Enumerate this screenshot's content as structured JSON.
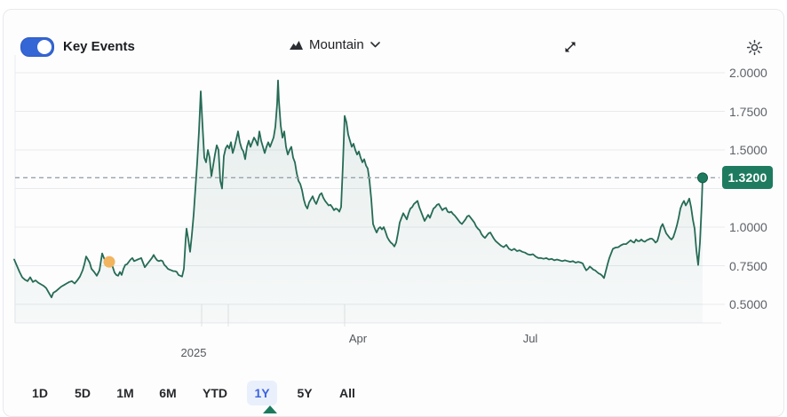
{
  "header": {
    "key_events_label": "Key Events",
    "key_events_enabled": true,
    "chart_type": {
      "label": "Mountain"
    }
  },
  "timeframes": {
    "options": [
      "1D",
      "5D",
      "1M",
      "6M",
      "YTD",
      "1Y",
      "5Y",
      "All"
    ],
    "active": "1Y"
  },
  "colors": {
    "toggle_blue": "#3566d6",
    "toggle_border": "#2d5ac2",
    "line_green": "#266b55",
    "fill_top": "rgba(38,110,86,0.11)",
    "fill_bottom": "rgba(38,110,86,0.03)",
    "badge_green": "#1e7b5f",
    "dot_stroke": "#10573f",
    "event_orange": "#f2b45f",
    "dashed_gray": "#9aa2a9",
    "grid_gray": "#e8eaed",
    "tick_gray": "#dfe2e5",
    "icon_dark": "#2a2e33"
  },
  "chart_data": {
    "type": "area",
    "style_name": "mountain",
    "title": "",
    "xlabel": "",
    "ylabel": "",
    "y_axis": {
      "range": [
        0.5,
        2.0
      ],
      "ticks": [
        {
          "value": 2.0,
          "label": "2.0000"
        },
        {
          "value": 1.75,
          "label": "1.7500"
        },
        {
          "value": 1.5,
          "label": "1.5000"
        },
        {
          "value": 1.25,
          "label": ""
        },
        {
          "value": 1.0,
          "label": "1.0000"
        },
        {
          "value": 0.75,
          "label": "0.7500"
        },
        {
          "value": 0.5,
          "label": "0.5000"
        }
      ]
    },
    "x_axis": {
      "labels": [
        {
          "text": "2025",
          "x": 218,
          "row": 2
        },
        {
          "text": "Apr",
          "x": 403,
          "row": 1
        },
        {
          "text": "Jul",
          "x": 597,
          "row": 1
        }
      ],
      "tick_positions": [
        227,
        257,
        388
      ]
    },
    "last_price": {
      "value": 1.32,
      "label": "1.3200"
    },
    "events": [
      {
        "x": 123,
        "value": 0.775
      }
    ],
    "series": [
      [
        16,
        0.79
      ],
      [
        19,
        0.75
      ],
      [
        22,
        0.71
      ],
      [
        25,
        0.675
      ],
      [
        28,
        0.66
      ],
      [
        31,
        0.65
      ],
      [
        34,
        0.675
      ],
      [
        37,
        0.645
      ],
      [
        40,
        0.655
      ],
      [
        43,
        0.64
      ],
      [
        46,
        0.63
      ],
      [
        49,
        0.62
      ],
      [
        52,
        0.605
      ],
      [
        55,
        0.575
      ],
      [
        58,
        0.545
      ],
      [
        60,
        0.575
      ],
      [
        63,
        0.585
      ],
      [
        66,
        0.6
      ],
      [
        69,
        0.615
      ],
      [
        72,
        0.625
      ],
      [
        75,
        0.635
      ],
      [
        78,
        0.645
      ],
      [
        81,
        0.65
      ],
      [
        84,
        0.635
      ],
      [
        87,
        0.655
      ],
      [
        90,
        0.68
      ],
      [
        93,
        0.72
      ],
      [
        95,
        0.76
      ],
      [
        97,
        0.81
      ],
      [
        99,
        0.79
      ],
      [
        101,
        0.77
      ],
      [
        103,
        0.73
      ],
      [
        106,
        0.71
      ],
      [
        109,
        0.685
      ],
      [
        112,
        0.72
      ],
      [
        115,
        0.83
      ],
      [
        117,
        0.8
      ],
      [
        119,
        0.78
      ],
      [
        121,
        0.79
      ],
      [
        123,
        0.8
      ],
      [
        125,
        0.77
      ],
      [
        127,
        0.74
      ],
      [
        129,
        0.705
      ],
      [
        131,
        0.69
      ],
      [
        133,
        0.685
      ],
      [
        135,
        0.71
      ],
      [
        137,
        0.69
      ],
      [
        139,
        0.73
      ],
      [
        141,
        0.755
      ],
      [
        143,
        0.76
      ],
      [
        145,
        0.775
      ],
      [
        147,
        0.79
      ],
      [
        149,
        0.8
      ],
      [
        151,
        0.78
      ],
      [
        153,
        0.785
      ],
      [
        155,
        0.79
      ],
      [
        157,
        0.795
      ],
      [
        159,
        0.8
      ],
      [
        161,
        0.77
      ],
      [
        163,
        0.74
      ],
      [
        165,
        0.755
      ],
      [
        167,
        0.77
      ],
      [
        169,
        0.785
      ],
      [
        171,
        0.8
      ],
      [
        173,
        0.82
      ],
      [
        175,
        0.8
      ],
      [
        177,
        0.785
      ],
      [
        179,
        0.78
      ],
      [
        181,
        0.785
      ],
      [
        183,
        0.78
      ],
      [
        185,
        0.755
      ],
      [
        187,
        0.745
      ],
      [
        189,
        0.73
      ],
      [
        191,
        0.725
      ],
      [
        193,
        0.72
      ],
      [
        195,
        0.715
      ],
      [
        197,
        0.715
      ],
      [
        199,
        0.71
      ],
      [
        201,
        0.69
      ],
      [
        203,
        0.685
      ],
      [
        205,
        0.68
      ],
      [
        207,
        0.73
      ],
      [
        209,
        0.92
      ],
      [
        210,
        0.99
      ],
      [
        212,
        0.92
      ],
      [
        214,
        0.84
      ],
      [
        216,
        0.95
      ],
      [
        218,
        1.08
      ],
      [
        220,
        1.25
      ],
      [
        222,
        1.42
      ],
      [
        224,
        1.62
      ],
      [
        226,
        1.88
      ],
      [
        228,
        1.66
      ],
      [
        230,
        1.45
      ],
      [
        232,
        1.42
      ],
      [
        234,
        1.5
      ],
      [
        236,
        1.45
      ],
      [
        238,
        1.33
      ],
      [
        240,
        1.4
      ],
      [
        242,
        1.47
      ],
      [
        244,
        1.53
      ],
      [
        246,
        1.5
      ],
      [
        248,
        1.3
      ],
      [
        250,
        1.25
      ],
      [
        252,
        1.46
      ],
      [
        254,
        1.51
      ],
      [
        256,
        1.53
      ],
      [
        258,
        1.51
      ],
      [
        260,
        1.55
      ],
      [
        262,
        1.48
      ],
      [
        264,
        1.52
      ],
      [
        266,
        1.57
      ],
      [
        268,
        1.62
      ],
      [
        270,
        1.55
      ],
      [
        272,
        1.51
      ],
      [
        274,
        1.49
      ],
      [
        276,
        1.44
      ],
      [
        278,
        1.52
      ],
      [
        280,
        1.56
      ],
      [
        282,
        1.52
      ],
      [
        284,
        1.55
      ],
      [
        286,
        1.58
      ],
      [
        288,
        1.56
      ],
      [
        290,
        1.53
      ],
      [
        292,
        1.62
      ],
      [
        294,
        1.56
      ],
      [
        296,
        1.52
      ],
      [
        298,
        1.48
      ],
      [
        300,
        1.52
      ],
      [
        302,
        1.55
      ],
      [
        304,
        1.52
      ],
      [
        306,
        1.55
      ],
      [
        308,
        1.58
      ],
      [
        310,
        1.65
      ],
      [
        312,
        1.8
      ],
      [
        313,
        1.95
      ],
      [
        314,
        1.82
      ],
      [
        316,
        1.66
      ],
      [
        318,
        1.58
      ],
      [
        320,
        1.62
      ],
      [
        322,
        1.52
      ],
      [
        324,
        1.47
      ],
      [
        326,
        1.5
      ],
      [
        328,
        1.52
      ],
      [
        330,
        1.45
      ],
      [
        332,
        1.42
      ],
      [
        334,
        1.35
      ],
      [
        336,
        1.3
      ],
      [
        338,
        1.28
      ],
      [
        340,
        1.24
      ],
      [
        342,
        1.18
      ],
      [
        344,
        1.14
      ],
      [
        346,
        1.12
      ],
      [
        348,
        1.16
      ],
      [
        350,
        1.18
      ],
      [
        352,
        1.2
      ],
      [
        354,
        1.17
      ],
      [
        356,
        1.15
      ],
      [
        358,
        1.18
      ],
      [
        360,
        1.21
      ],
      [
        362,
        1.22
      ],
      [
        364,
        1.19
      ],
      [
        366,
        1.17
      ],
      [
        368,
        1.155
      ],
      [
        370,
        1.14
      ],
      [
        372,
        1.145
      ],
      [
        374,
        1.13
      ],
      [
        376,
        1.11
      ],
      [
        378,
        1.12
      ],
      [
        380,
        1.115
      ],
      [
        382,
        1.1
      ],
      [
        384,
        1.13
      ],
      [
        386,
        1.4
      ],
      [
        388,
        1.72
      ],
      [
        390,
        1.68
      ],
      [
        392,
        1.6
      ],
      [
        394,
        1.56
      ],
      [
        396,
        1.52
      ],
      [
        398,
        1.54
      ],
      [
        400,
        1.5
      ],
      [
        402,
        1.47
      ],
      [
        404,
        1.49
      ],
      [
        406,
        1.45
      ],
      [
        408,
        1.42
      ],
      [
        410,
        1.44
      ],
      [
        412,
        1.4
      ],
      [
        414,
        1.38
      ],
      [
        416,
        1.3
      ],
      [
        418,
        1.18
      ],
      [
        420,
        1.02
      ],
      [
        422,
        0.99
      ],
      [
        424,
        0.965
      ],
      [
        426,
        0.99
      ],
      [
        428,
        1.0
      ],
      [
        430,
        0.985
      ],
      [
        432,
        1.0
      ],
      [
        434,
        0.97
      ],
      [
        436,
        0.935
      ],
      [
        438,
        0.915
      ],
      [
        440,
        0.9
      ],
      [
        442,
        0.89
      ],
      [
        444,
        0.875
      ],
      [
        446,
        0.9
      ],
      [
        448,
        0.96
      ],
      [
        450,
        1.03
      ],
      [
        452,
        1.06
      ],
      [
        454,
        1.09
      ],
      [
        456,
        1.07
      ],
      [
        458,
        1.05
      ],
      [
        460,
        1.09
      ],
      [
        462,
        1.12
      ],
      [
        464,
        1.13
      ],
      [
        466,
        1.15
      ],
      [
        468,
        1.16
      ],
      [
        470,
        1.17
      ],
      [
        472,
        1.13
      ],
      [
        474,
        1.1
      ],
      [
        476,
        1.07
      ],
      [
        478,
        1.04
      ],
      [
        480,
        1.06
      ],
      [
        482,
        1.08
      ],
      [
        484,
        1.06
      ],
      [
        486,
        1.09
      ],
      [
        488,
        1.12
      ],
      [
        490,
        1.13
      ],
      [
        492,
        1.145
      ],
      [
        494,
        1.15
      ],
      [
        496,
        1.13
      ],
      [
        498,
        1.11
      ],
      [
        500,
        1.12
      ],
      [
        502,
        1.125
      ],
      [
        504,
        1.1
      ],
      [
        506,
        1.095
      ],
      [
        508,
        1.1
      ],
      [
        510,
        1.085
      ],
      [
        512,
        1.075
      ],
      [
        514,
        1.06
      ],
      [
        516,
        1.045
      ],
      [
        518,
        1.03
      ],
      [
        520,
        1.02
      ],
      [
        522,
        1.035
      ],
      [
        524,
        1.05
      ],
      [
        526,
        1.07
      ],
      [
        528,
        1.075
      ],
      [
        530,
        1.06
      ],
      [
        532,
        1.045
      ],
      [
        534,
        1.03
      ],
      [
        536,
        1.005
      ],
      [
        538,
        0.99
      ],
      [
        540,
        0.98
      ],
      [
        542,
        0.955
      ],
      [
        544,
        0.94
      ],
      [
        546,
        0.93
      ],
      [
        548,
        0.945
      ],
      [
        550,
        0.96
      ],
      [
        552,
        0.965
      ],
      [
        554,
        0.945
      ],
      [
        556,
        0.925
      ],
      [
        558,
        0.91
      ],
      [
        561,
        0.895
      ],
      [
        564,
        0.88
      ],
      [
        567,
        0.87
      ],
      [
        570,
        0.885
      ],
      [
        573,
        0.86
      ],
      [
        576,
        0.85
      ],
      [
        579,
        0.86
      ],
      [
        582,
        0.845
      ],
      [
        585,
        0.85
      ],
      [
        588,
        0.84
      ],
      [
        591,
        0.835
      ],
      [
        594,
        0.825
      ],
      [
        597,
        0.82
      ],
      [
        600,
        0.825
      ],
      [
        603,
        0.81
      ],
      [
        606,
        0.8
      ],
      [
        609,
        0.8
      ],
      [
        612,
        0.795
      ],
      [
        615,
        0.8
      ],
      [
        618,
        0.79
      ],
      [
        621,
        0.795
      ],
      [
        624,
        0.785
      ],
      [
        627,
        0.79
      ],
      [
        630,
        0.785
      ],
      [
        633,
        0.78
      ],
      [
        636,
        0.785
      ],
      [
        639,
        0.78
      ],
      [
        642,
        0.775
      ],
      [
        645,
        0.78
      ],
      [
        648,
        0.77
      ],
      [
        651,
        0.775
      ],
      [
        654,
        0.77
      ],
      [
        656,
        0.765
      ],
      [
        658,
        0.74
      ],
      [
        660,
        0.72
      ],
      [
        662,
        0.73
      ],
      [
        664,
        0.745
      ],
      [
        666,
        0.735
      ],
      [
        668,
        0.725
      ],
      [
        670,
        0.72
      ],
      [
        672,
        0.71
      ],
      [
        674,
        0.7
      ],
      [
        676,
        0.695
      ],
      [
        678,
        0.685
      ],
      [
        680,
        0.67
      ],
      [
        682,
        0.715
      ],
      [
        684,
        0.76
      ],
      [
        686,
        0.8
      ],
      [
        688,
        0.83
      ],
      [
        690,
        0.86
      ],
      [
        693,
        0.868
      ],
      [
        696,
        0.87
      ],
      [
        699,
        0.882
      ],
      [
        702,
        0.89
      ],
      [
        705,
        0.89
      ],
      [
        708,
        0.905
      ],
      [
        710,
        0.915
      ],
      [
        712,
        0.905
      ],
      [
        714,
        0.9
      ],
      [
        716,
        0.92
      ],
      [
        718,
        0.91
      ],
      [
        720,
        0.91
      ],
      [
        722,
        0.92
      ],
      [
        724,
        0.91
      ],
      [
        726,
        0.905
      ],
      [
        728,
        0.915
      ],
      [
        730,
        0.92
      ],
      [
        732,
        0.925
      ],
      [
        734,
        0.925
      ],
      [
        736,
        0.915
      ],
      [
        738,
        0.9
      ],
      [
        740,
        0.91
      ],
      [
        742,
        0.95
      ],
      [
        744,
        1.0
      ],
      [
        746,
        1.02
      ],
      [
        748,
        0.99
      ],
      [
        750,
        0.96
      ],
      [
        752,
        0.945
      ],
      [
        754,
        0.93
      ],
      [
        756,
        0.92
      ],
      [
        758,
        0.935
      ],
      [
        760,
        0.97
      ],
      [
        762,
        1.01
      ],
      [
        764,
        1.06
      ],
      [
        766,
        1.12
      ],
      [
        768,
        1.15
      ],
      [
        770,
        1.17
      ],
      [
        772,
        1.14
      ],
      [
        774,
        1.16
      ],
      [
        776,
        1.185
      ],
      [
        778,
        1.13
      ],
      [
        780,
        1.05
      ],
      [
        782,
        0.99
      ],
      [
        784,
        0.85
      ],
      [
        786,
        0.755
      ],
      [
        788,
        0.9
      ],
      [
        790,
        1.15
      ],
      [
        791,
        1.32
      ]
    ]
  }
}
